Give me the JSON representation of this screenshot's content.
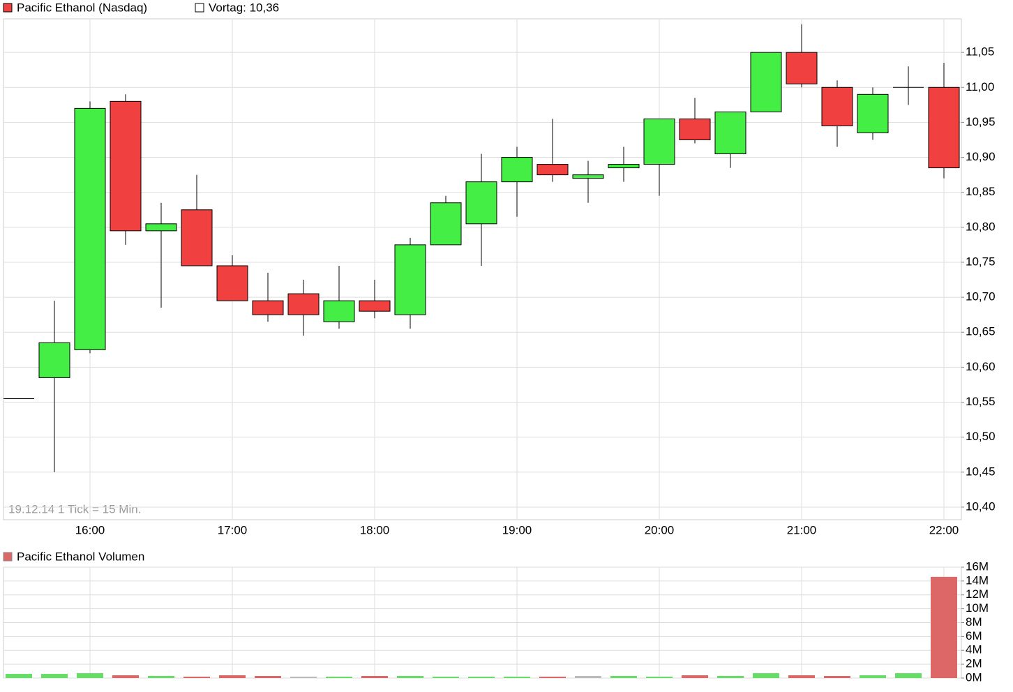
{
  "chart_data": [
    {
      "type": "candlestick",
      "legend": [
        {
          "name": "Pacific Ethanol (Nasdaq)",
          "color": "#f04040"
        },
        {
          "name": "Vortag: 10,36",
          "color": "#ffffff"
        }
      ],
      "annotation": "19.12.14   1 Tick = 15 Min.",
      "categories": [
        null,
        null,
        "16:00",
        null,
        null,
        null,
        "17:00",
        null,
        null,
        null,
        "18:00",
        null,
        null,
        null,
        "19:00",
        null,
        null,
        null,
        "20:00",
        null,
        null,
        null,
        "21:00",
        null,
        null,
        null,
        "22:00"
      ],
      "up_color": "#44ee44",
      "down_color": "#f04040",
      "open": [
        10.555,
        10.585,
        10.625,
        10.98,
        10.795,
        10.825,
        10.745,
        10.695,
        10.705,
        10.665,
        10.695,
        10.675,
        10.775,
        10.805,
        10.865,
        10.89,
        10.87,
        10.885,
        10.89,
        10.955,
        10.905,
        10.965,
        11.05,
        11.0,
        10.935,
        11.0,
        11.0
      ],
      "high": [
        10.555,
        10.695,
        10.98,
        10.99,
        10.835,
        10.875,
        10.76,
        10.735,
        10.725,
        10.745,
        10.725,
        10.785,
        10.845,
        10.905,
        10.915,
        10.955,
        10.895,
        10.915,
        10.955,
        10.985,
        10.965,
        11.05,
        11.09,
        11.01,
        11.0,
        11.03,
        11.035
      ],
      "low": [
        10.555,
        10.45,
        10.62,
        10.775,
        10.685,
        10.745,
        10.695,
        10.665,
        10.645,
        10.655,
        10.67,
        10.655,
        10.775,
        10.745,
        10.815,
        10.865,
        10.835,
        10.865,
        10.845,
        10.92,
        10.885,
        10.965,
        11.0,
        10.915,
        10.925,
        10.975,
        10.87
      ],
      "close": [
        10.555,
        10.635,
        10.97,
        10.795,
        10.805,
        10.745,
        10.695,
        10.675,
        10.675,
        10.695,
        10.68,
        10.775,
        10.835,
        10.865,
        10.9,
        10.875,
        10.875,
        10.89,
        10.955,
        10.925,
        10.965,
        11.05,
        11.005,
        10.945,
        10.99,
        11.0,
        10.885
      ],
      "ylim": [
        10.382,
        11.098
      ],
      "yticks": [
        {
          "value": 10.4,
          "label": "10,40"
        },
        {
          "value": 10.45,
          "label": "10,45"
        },
        {
          "value": 10.5,
          "label": "10,50"
        },
        {
          "value": 10.55,
          "label": "10,55"
        },
        {
          "value": 10.6,
          "label": "10,60"
        },
        {
          "value": 10.65,
          "label": "10,65"
        },
        {
          "value": 10.7,
          "label": "10,70"
        },
        {
          "value": 10.75,
          "label": "10,75"
        },
        {
          "value": 10.8,
          "label": "10,80"
        },
        {
          "value": 10.85,
          "label": "10,85"
        },
        {
          "value": 10.9,
          "label": "10,90"
        },
        {
          "value": 10.95,
          "label": "10,95"
        },
        {
          "value": 11.0,
          "label": "11,00"
        },
        {
          "value": 11.05,
          "label": "11,05"
        }
      ],
      "grid": true
    },
    {
      "type": "bar",
      "series": [
        {
          "name": "Pacific Ethanol Volumen",
          "color": "#dd6666",
          "values": [
            600000,
            600000,
            700000,
            400000,
            300000,
            200000,
            400000,
            300000,
            200000,
            200000,
            300000,
            300000,
            200000,
            200000,
            200000,
            200000,
            300000,
            300000,
            200000,
            400000,
            300000,
            700000,
            400000,
            300000,
            400000,
            700000,
            14600000
          ],
          "colors": [
            "#66dd66",
            "#66dd66",
            "#66dd66",
            "#dd6666",
            "#66dd66",
            "#dd6666",
            "#dd6666",
            "#dd6666",
            "#bbbbbb",
            "#66dd66",
            "#dd6666",
            "#66dd66",
            "#66dd66",
            "#66dd66",
            "#66dd66",
            "#dd6666",
            "#bbbbbb",
            "#66dd66",
            "#66dd66",
            "#dd6666",
            "#66dd66",
            "#66dd66",
            "#dd6666",
            "#dd6666",
            "#66dd66",
            "#66dd66",
            "#dd6666"
          ]
        }
      ],
      "ylim": [
        0,
        16000000
      ],
      "yticks": [
        {
          "value": 0,
          "label": "0M"
        },
        {
          "value": 2000000,
          "label": "2M"
        },
        {
          "value": 4000000,
          "label": "4M"
        },
        {
          "value": 6000000,
          "label": "6M"
        },
        {
          "value": 8000000,
          "label": "8M"
        },
        {
          "value": 10000000,
          "label": "10M"
        },
        {
          "value": 12000000,
          "label": "12M"
        },
        {
          "value": 14000000,
          "label": "14M"
        },
        {
          "value": 16000000,
          "label": "16M"
        }
      ],
      "grid": true
    }
  ]
}
